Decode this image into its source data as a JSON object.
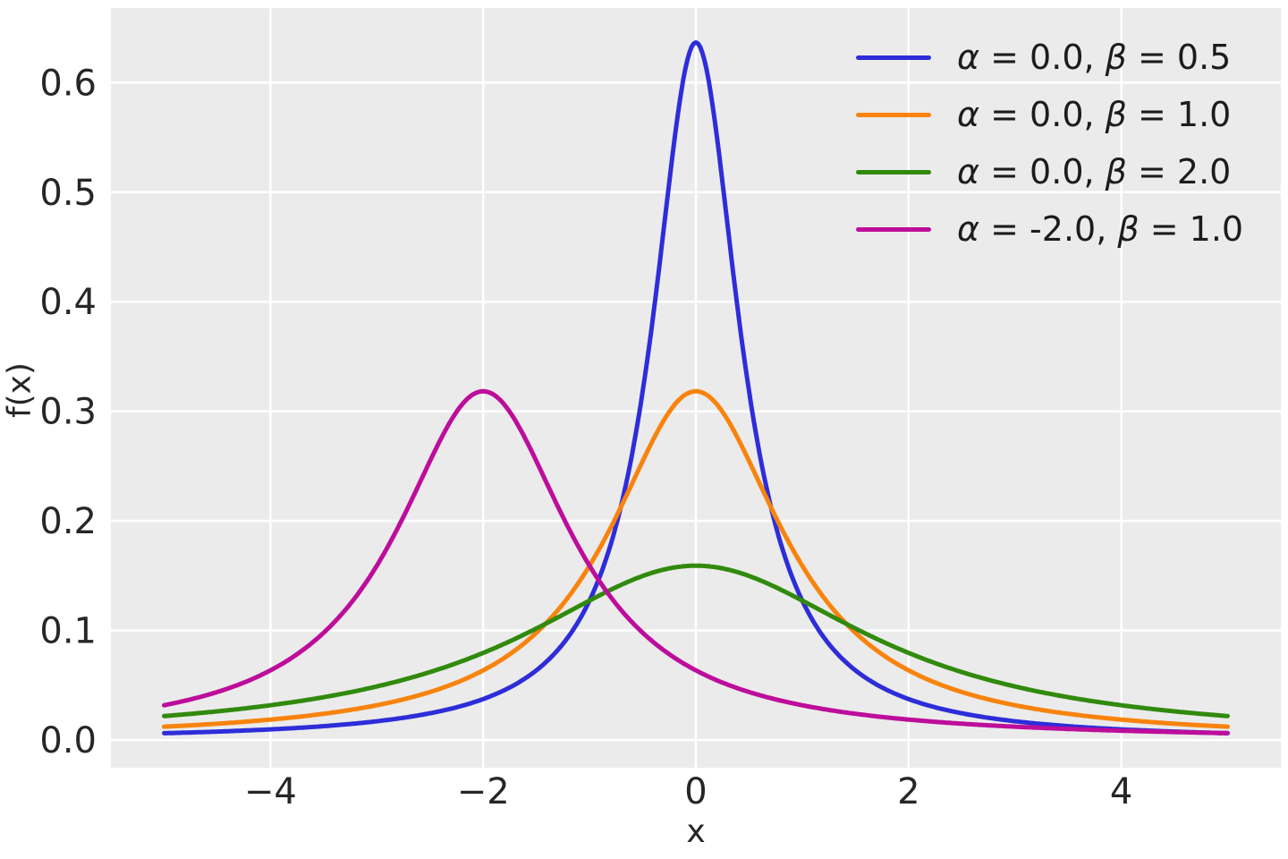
{
  "figure": {
    "background": "#ffffff",
    "axes_background": "#ebebeb",
    "grid_color": "#ffffff",
    "grid_width": 2.5,
    "tick_color": "#262626",
    "line_width": 5
  },
  "chart_data": {
    "type": "line",
    "title": "",
    "xlabel": "x",
    "ylabel": "f(x)",
    "xlim": [
      -5.5,
      5.5
    ],
    "ylim": [
      -0.0252,
      0.668
    ],
    "x_ticks": [
      -4,
      -2,
      0,
      2,
      4
    ],
    "x_tick_labels": [
      "−4",
      "−2",
      "0",
      "2",
      "4"
    ],
    "y_ticks": [
      0.0,
      0.1,
      0.2,
      0.3,
      0.4,
      0.5,
      0.6
    ],
    "y_tick_labels": [
      "0.0",
      "0.1",
      "0.2",
      "0.3",
      "0.4",
      "0.5",
      "0.6"
    ],
    "grid": true,
    "legend_position": "upper right",
    "legend_frame": false,
    "distribution": "cauchy",
    "x_range": [
      -5,
      5
    ],
    "x_samples": [
      -5,
      -4.5,
      -4,
      -3.5,
      -3,
      -2.5,
      -2,
      -1.5,
      -1,
      -0.5,
      0,
      0.5,
      1,
      1.5,
      2,
      2.5,
      3,
      3.5,
      4,
      4.5,
      5
    ],
    "series": [
      {
        "name": "α = 0.0, β = 0.5",
        "alpha": 0.0,
        "beta": 0.5,
        "color": "#2d2dd9",
        "values": [
          0.0063,
          0.0078,
          0.0098,
          0.0127,
          0.0172,
          0.0245,
          0.0374,
          0.0637,
          0.1273,
          0.3183,
          0.6366,
          0.3183,
          0.1273,
          0.0637,
          0.0374,
          0.0245,
          0.0172,
          0.0127,
          0.0098,
          0.0078,
          0.0063
        ]
      },
      {
        "name": "α = 0.0, β = 1.0",
        "alpha": 0.0,
        "beta": 1.0,
        "color": "#f8830d",
        "values": [
          0.0122,
          0.015,
          0.0187,
          0.024,
          0.0318,
          0.0439,
          0.0637,
          0.0979,
          0.1592,
          0.2546,
          0.3183,
          0.2546,
          0.1592,
          0.0979,
          0.0637,
          0.0439,
          0.0318,
          0.024,
          0.0187,
          0.015,
          0.0122
        ]
      },
      {
        "name": "α = 0.0, β = 2.0",
        "alpha": 0.0,
        "beta": 2.0,
        "color": "#318a0d",
        "values": [
          0.022,
          0.0263,
          0.0318,
          0.0392,
          0.049,
          0.0621,
          0.0796,
          0.1019,
          0.1273,
          0.1498,
          0.1592,
          0.1498,
          0.1273,
          0.1019,
          0.0796,
          0.0621,
          0.049,
          0.0392,
          0.0318,
          0.0263,
          0.022
        ]
      },
      {
        "name": "α = -2.0, β = 1.0",
        "alpha": -2.0,
        "beta": 1.0,
        "color": "#bd0d9b",
        "values": [
          0.0318,
          0.0439,
          0.0637,
          0.0979,
          0.1592,
          0.2546,
          0.3183,
          0.2546,
          0.1592,
          0.0979,
          0.0637,
          0.0439,
          0.0318,
          0.024,
          0.0187,
          0.015,
          0.0122,
          0.0102,
          0.0086,
          0.0074,
          0.0064
        ]
      }
    ]
  }
}
